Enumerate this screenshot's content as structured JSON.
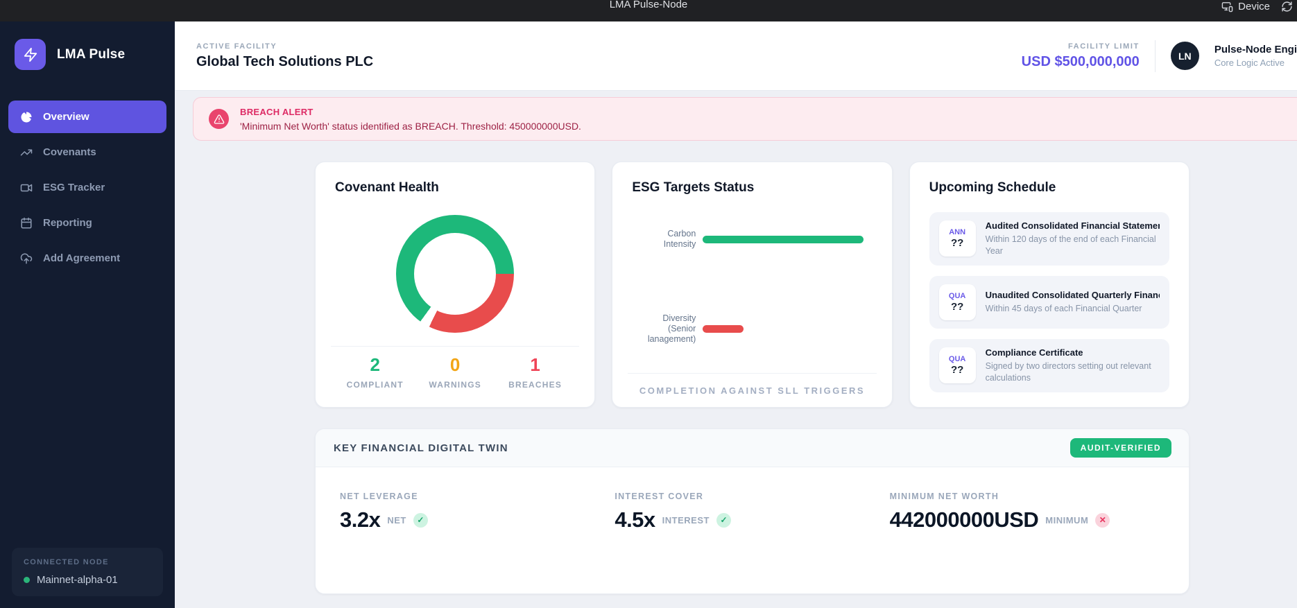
{
  "topbar": {
    "title": "LMA Pulse-Node",
    "device_label": "Device"
  },
  "sidebar": {
    "brand": "LMA Pulse",
    "items": [
      {
        "label": "Overview",
        "active": true
      },
      {
        "label": "Covenants",
        "active": false
      },
      {
        "label": "ESG Tracker",
        "active": false
      },
      {
        "label": "Reporting",
        "active": false
      },
      {
        "label": "Add Agreement",
        "active": false
      }
    ],
    "connected_node": {
      "label": "CONNECTED NODE",
      "node": "Mainnet-alpha-01"
    }
  },
  "header": {
    "facility_label": "ACTIVE FACILITY",
    "facility_name": "Global Tech Solutions PLC",
    "limit_label": "FACILITY LIMIT",
    "limit_value": "USD $500,000,000",
    "user_initials": "LN",
    "user_name": "Pulse-Node Engi",
    "user_status": "Core Logic Active"
  },
  "alert": {
    "title": "BREACH ALERT",
    "message": "'Minimum Net Worth' status identified as BREACH. Threshold: 450000000USD."
  },
  "covenant_health": {
    "title": "Covenant Health",
    "stats": [
      {
        "value": "2",
        "label": "COMPLIANT",
        "color": "#1db87a"
      },
      {
        "value": "0",
        "label": "WARNINGS",
        "color": "#f2a516"
      },
      {
        "value": "1",
        "label": "BREACHES",
        "color": "#ef4457"
      }
    ]
  },
  "esg": {
    "title": "ESG Targets Status",
    "caption": "COMPLETION AGAINST SLL TRIGGERS",
    "bars": [
      {
        "label_lines": [
          "Carbon",
          "Intensity",
          ""
        ],
        "value": 95,
        "color": "#1db87a"
      },
      {
        "label_lines": [
          "Diversity",
          "(Senior",
          "lanagement)"
        ],
        "value": 24,
        "color": "#e84c4c"
      }
    ]
  },
  "schedule": {
    "title": "Upcoming Schedule",
    "items": [
      {
        "badge_top": "ANN",
        "badge_bottom": "??",
        "title": "Audited Consolidated Financial Statements",
        "desc": "Within 120 days of the end of each Financial Year"
      },
      {
        "badge_top": "QUA",
        "badge_bottom": "??",
        "title": "Unaudited Consolidated Quarterly Financi...",
        "desc": "Within 45 days of each Financial Quarter"
      },
      {
        "badge_top": "QUA",
        "badge_bottom": "??",
        "title": "Compliance Certificate",
        "desc": "Signed by two directors setting out relevant calculations"
      }
    ]
  },
  "key_financial": {
    "title": "KEY FINANCIAL DIGITAL TWIN",
    "badge": "AUDIT-VERIFIED",
    "metrics": [
      {
        "label": "NET LEVERAGE",
        "value": "3.2x",
        "unit": "NET",
        "status": "pass",
        "status_glyph": "✓",
        "status_icon": "check-icon"
      },
      {
        "label": "INTEREST COVER",
        "value": "4.5x",
        "unit": "INTEREST",
        "status": "pass",
        "status_glyph": "✓",
        "status_icon": "check-icon"
      },
      {
        "label": "MINIMUM NET WORTH",
        "value": "442000000USD",
        "unit": "MINIMUM",
        "status": "fail",
        "status_glyph": "✕",
        "status_icon": "x-icon"
      }
    ]
  },
  "chart_data": [
    {
      "type": "pie",
      "subtype": "donut",
      "title": "Covenant Health",
      "categories": [
        "Compliant",
        "Warnings",
        "Breaches"
      ],
      "values": [
        2,
        0,
        1
      ],
      "colors": [
        "#1db87a",
        "#f2a516",
        "#e84c4c"
      ],
      "legend_position": "none"
    },
    {
      "type": "bar",
      "orientation": "horizontal",
      "title": "ESG Targets Status",
      "categories": [
        "Carbon Intensity",
        "Diversity (Senior lanagement)"
      ],
      "values": [
        95,
        24
      ],
      "colors": [
        "#1db87a",
        "#e84c4c"
      ],
      "xlim": [
        0,
        100
      ],
      "xlabel": "COMPLETION AGAINST SLL TRIGGERS",
      "grid": false
    }
  ],
  "colors": {
    "accent_purple": "#5f54e0",
    "brand_purple": "#6a5ae8",
    "green": "#1db87a",
    "red": "#e84c4c",
    "amber": "#f2a516",
    "alert_bg": "#fdecf0",
    "alert_accent": "#e9446d",
    "sidebar_bg": "#131c30",
    "topbar_bg": "#202124",
    "page_bg": "#eef0f5"
  }
}
